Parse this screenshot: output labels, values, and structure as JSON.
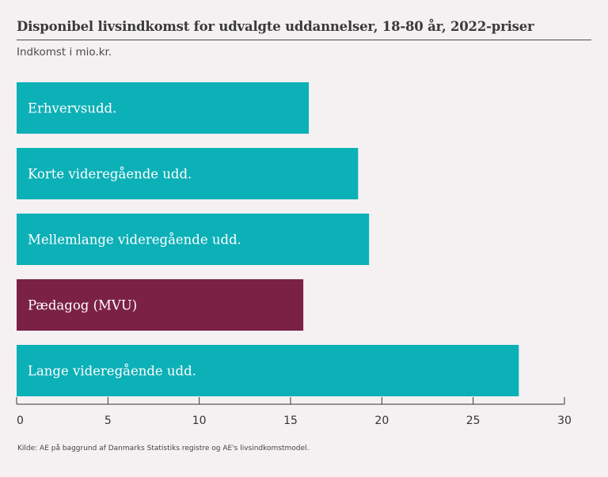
{
  "header": {
    "title": "Disponibel livsindkomst for udvalgte uddannelser, 18-80 år, 2022-priser",
    "unit": "Indkomst i mio.kr."
  },
  "footer": {
    "source": "Kilde: AE på baggrund af Danmarks Statistiks registre og AE's livsindkomstmodel."
  },
  "colors": {
    "teal": "#0cb0b7",
    "highlight": "#7b2145",
    "axis": "#333333"
  },
  "chart_data": {
    "type": "bar",
    "orientation": "horizontal",
    "title": "Disponibel livsindkomst for udvalgte uddannelser, 18-80 år, 2022-priser",
    "ylabel": "Indkomst i mio.kr.",
    "categories": [
      "Erhvervsudd.",
      "Korte videregående udd.",
      "Mellemlange videregående udd.",
      "Pædagog (MVU)",
      "Lange videregående udd."
    ],
    "values": [
      16.0,
      18.7,
      19.3,
      15.7,
      27.5
    ],
    "highlighted": [
      "Pædagog (MVU)"
    ],
    "xlim": [
      0,
      30
    ],
    "ticks": [
      0,
      5,
      10,
      15,
      20,
      25,
      30
    ],
    "grid": false,
    "legend": "none"
  }
}
